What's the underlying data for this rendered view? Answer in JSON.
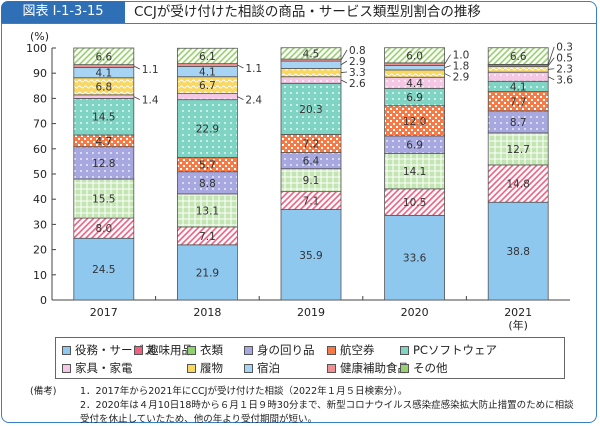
{
  "header": {
    "figure_no": "図表 I-1-3-15",
    "title": "CCJが受け付けた相談の商品・サービス類型別割合の推移"
  },
  "chart_data": {
    "type": "bar",
    "stacked": true,
    "ylabel": "(%)",
    "xlabel": "(年)",
    "ylim": [
      0,
      100
    ],
    "yticks": [
      "0",
      "10",
      "20",
      "30",
      "40",
      "50",
      "60",
      "70",
      "80",
      "90",
      "100"
    ],
    "categories": [
      "2017",
      "2018",
      "2019",
      "2020",
      "2021"
    ],
    "series": [
      {
        "name": "役務・サービス",
        "color": "#8ec8ef",
        "pattern": "solid",
        "values": [
          24.5,
          21.9,
          35.9,
          33.6,
          38.8
        ]
      },
      {
        "name": "趣味用品",
        "color": "#f06080",
        "pattern": "hatch",
        "values": [
          8.0,
          7.1,
          7.1,
          10.5,
          14.8
        ]
      },
      {
        "name": "衣類",
        "color": "#8fd070",
        "pattern": "grid",
        "values": [
          15.5,
          13.1,
          9.1,
          14.1,
          12.7
        ]
      },
      {
        "name": "身の回り品",
        "color": "#a8a8e0",
        "pattern": "dots",
        "values": [
          12.8,
          8.8,
          6.4,
          6.9,
          8.7
        ]
      },
      {
        "name": "航空券",
        "color": "#f57a45",
        "pattern": "check",
        "values": [
          4.7,
          5.7,
          7.2,
          12.0,
          7.7
        ]
      },
      {
        "name": "PCソフトウェア",
        "color": "#7fd4c4",
        "pattern": "dots",
        "values": [
          14.5,
          22.9,
          20.3,
          6.9,
          4.1
        ]
      },
      {
        "name": "家具・家電",
        "color": "#f4c8e4",
        "pattern": "dots",
        "values": [
          1.4,
          2.4,
          2.6,
          4.4,
          3.6
        ]
      },
      {
        "name": "履物",
        "color": "#f8d860",
        "pattern": "wave",
        "values": [
          6.8,
          6.7,
          3.3,
          2.9,
          2.3
        ]
      },
      {
        "name": "宿泊",
        "color": "#a8d4f4",
        "pattern": "solid",
        "values": [
          4.1,
          4.1,
          2.9,
          1.8,
          0.5
        ]
      },
      {
        "name": "健康補助食品",
        "color": "#f09090",
        "pattern": "solid",
        "values": [
          1.1,
          1.1,
          0.8,
          1.0,
          0.3
        ]
      },
      {
        "name": "その他",
        "color": "#98d070",
        "pattern": "hatch",
        "values": [
          6.6,
          6.1,
          4.5,
          6.0,
          6.6
        ]
      }
    ],
    "legend_position": "bottom",
    "grid": false
  },
  "notes": {
    "label": "(備考)",
    "items": [
      "1．2017年から2021年にCCJが受け付けた相談（2022年１月５日検索分）。",
      "2．2020年は４月10日18時から６月１日９時30分まで、新型コロナウイルス感染症感染拡大防止措置のために相談受付を休止していたため、他の年より受付期間が短い。"
    ]
  }
}
